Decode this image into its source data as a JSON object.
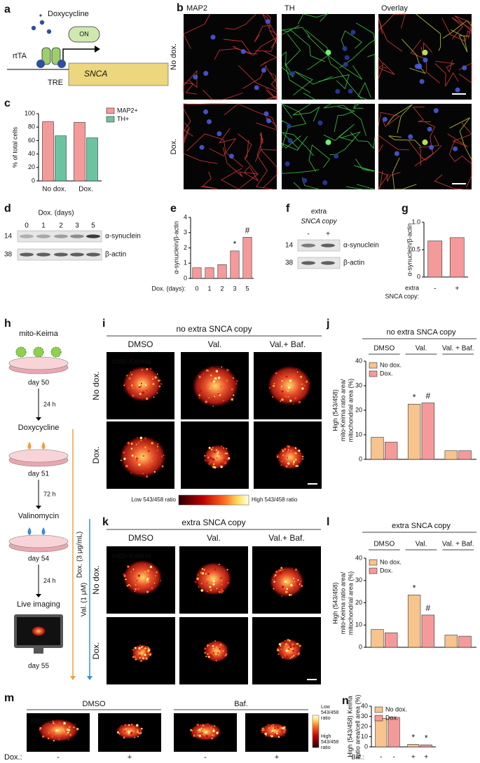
{
  "a": {
    "panel": "a",
    "inducer": "Doxycycline",
    "on": "ON",
    "activator": "rtTA",
    "promoter": "TRE",
    "gene": "SNCA"
  },
  "b": {
    "panel": "b",
    "columns": [
      "MAP2",
      "TH",
      "Overlay"
    ],
    "rows": [
      "No dox.",
      "Dox."
    ]
  },
  "d": {
    "panel": "d",
    "header": "Dox. (days)",
    "lanes": [
      "0",
      "1",
      "2",
      "3",
      "5"
    ],
    "markers": [
      "14",
      "38"
    ],
    "bands": [
      "α-synuclein",
      "β-actin"
    ]
  },
  "f": {
    "panel": "f",
    "header": [
      "extra",
      "SNCA copy"
    ],
    "lanes": [
      "-",
      "+"
    ],
    "markers": [
      "14",
      "38"
    ],
    "bands": [
      "α-synuclein",
      "β-actin"
    ]
  },
  "h": {
    "panel": "h",
    "steps": [
      {
        "label": "mito-Keima",
        "day": "day 50"
      },
      {
        "label": "Doxycycline",
        "day": "day 51"
      },
      {
        "label": "Valinomycin",
        "day": "day 54"
      },
      {
        "label": "Live imaging",
        "day": "day 55"
      }
    ],
    "intervals": [
      "24 h",
      "72 h",
      "24 h"
    ],
    "treatments": [
      "Dox. (3 μg/mL)",
      "Val. (1 μM)"
    ]
  },
  "i": {
    "panel": "i",
    "title": "no extra SNCA copy",
    "columns": [
      "DMSO",
      "Val.",
      "Val.+ Baf."
    ],
    "stain": "mito-Keima",
    "rows": [
      "No dox.",
      "Dox."
    ],
    "scale": [
      "Low 543/458 ratio",
      "High 543/458 ratio"
    ]
  },
  "k": {
    "panel": "k",
    "title": "extra SNCA copy",
    "columns": [
      "DMSO",
      "Val.",
      "Val.+ Baf."
    ],
    "stain": "mito-Keima",
    "rows": [
      "No dox.",
      "Dox."
    ]
  },
  "m": {
    "panel": "m",
    "stain": "Keima",
    "groups": [
      "DMSO",
      "Baf."
    ],
    "row_label": "Dox.:",
    "lanes": [
      "-",
      "+",
      "-",
      "+"
    ],
    "scale": [
      [
        "Low",
        "543/458",
        "ratio"
      ],
      [
        "High",
        "543/458",
        "ratio"
      ]
    ]
  },
  "chart_data": [
    {
      "panel": "c",
      "type": "bar",
      "ylabel": "% of total cells",
      "categories": [
        "No dox.",
        "Dox."
      ],
      "series": [
        {
          "name": "MAP2+",
          "color": "#f59a9a",
          "values": [
            88,
            87
          ]
        },
        {
          "name": "TH+",
          "color": "#6cc3a0",
          "values": [
            67,
            64
          ]
        }
      ],
      "ylim": [
        0,
        100
      ],
      "yticks": [
        0,
        20,
        40,
        60,
        80,
        100
      ]
    },
    {
      "panel": "e",
      "type": "bar",
      "ylabel": "α-synuclein/β-actin",
      "xlabel": "Dox. (days):",
      "categories": [
        "0",
        "1",
        "2",
        "3",
        "5"
      ],
      "values": [
        0.7,
        0.7,
        0.9,
        1.8,
        2.7
      ],
      "annotations": [
        null,
        null,
        null,
        "*",
        "#"
      ],
      "color": "#f59a9a",
      "ylim": [
        0,
        4
      ],
      "yticks": [
        0,
        1,
        2,
        3,
        4
      ]
    },
    {
      "panel": "g",
      "type": "bar",
      "ylabel": "α-synuclein/β-actin",
      "xlabel": [
        "extra",
        "SNCA copy:"
      ],
      "categories": [
        "-",
        "+"
      ],
      "values": [
        0.66,
        0.72
      ],
      "color": "#f59a9a",
      "ylim": [
        0,
        1
      ],
      "yticks": [
        0,
        0.5,
        {
          "value": 1,
          "label": "1.0"
        }
      ]
    },
    {
      "panel": "j",
      "type": "bar",
      "title": "no extra SNCA copy",
      "ylabel": [
        "High (543/458)",
        "mito-Keima ratio area/",
        "mitochondrial area (%)"
      ],
      "categories": [
        "DMSO",
        "Val.",
        "Val. + Baf."
      ],
      "series": [
        {
          "name": "No dox.",
          "color": "#f7c48d",
          "values": [
            9,
            22.5,
            3.5
          ],
          "annotations": [
            null,
            "*",
            null
          ]
        },
        {
          "name": "Dox.",
          "color": "#f59a9a",
          "values": [
            7,
            23,
            3.5
          ],
          "annotations": [
            null,
            "#",
            null
          ]
        }
      ],
      "ylim": [
        0,
        40
      ],
      "yticks": [
        0,
        10,
        20,
        30,
        40
      ]
    },
    {
      "panel": "l",
      "type": "bar",
      "title": "extra SNCA copy",
      "ylabel": [
        "High (543/458)",
        "mito-Keima ratio area/",
        "mitochondrial area (%)"
      ],
      "categories": [
        "DMSO",
        "Val.",
        "Val. + Baf."
      ],
      "series": [
        {
          "name": "No dox.",
          "color": "#f7c48d",
          "values": [
            8,
            23.5,
            5.5
          ],
          "annotations": [
            null,
            "*",
            null
          ]
        },
        {
          "name": "Dox.",
          "color": "#f59a9a",
          "values": [
            6.5,
            14.5,
            5
          ],
          "annotations": [
            null,
            "#",
            null
          ]
        }
      ],
      "ylim": [
        0,
        40
      ],
      "yticks": [
        0,
        10,
        20,
        30,
        40
      ]
    },
    {
      "panel": "n",
      "type": "bar",
      "ylabel": [
        "High (543/458) Keima",
        "ratio area/cell area (%)"
      ],
      "xlabel": "Baf.:",
      "categories": [
        "-",
        "+"
      ],
      "series": [
        {
          "name": "No dox.",
          "color": "#f7c48d",
          "values": [
            28,
            2.5
          ],
          "annotations": [
            null,
            "*"
          ]
        },
        {
          "name": "Dox.",
          "color": "#f59a9a",
          "values": [
            29,
            2
          ],
          "annotations": [
            null,
            "*"
          ]
        }
      ],
      "ylim": [
        0,
        40
      ],
      "yticks": [
        0,
        10,
        20,
        30,
        40
      ]
    }
  ]
}
